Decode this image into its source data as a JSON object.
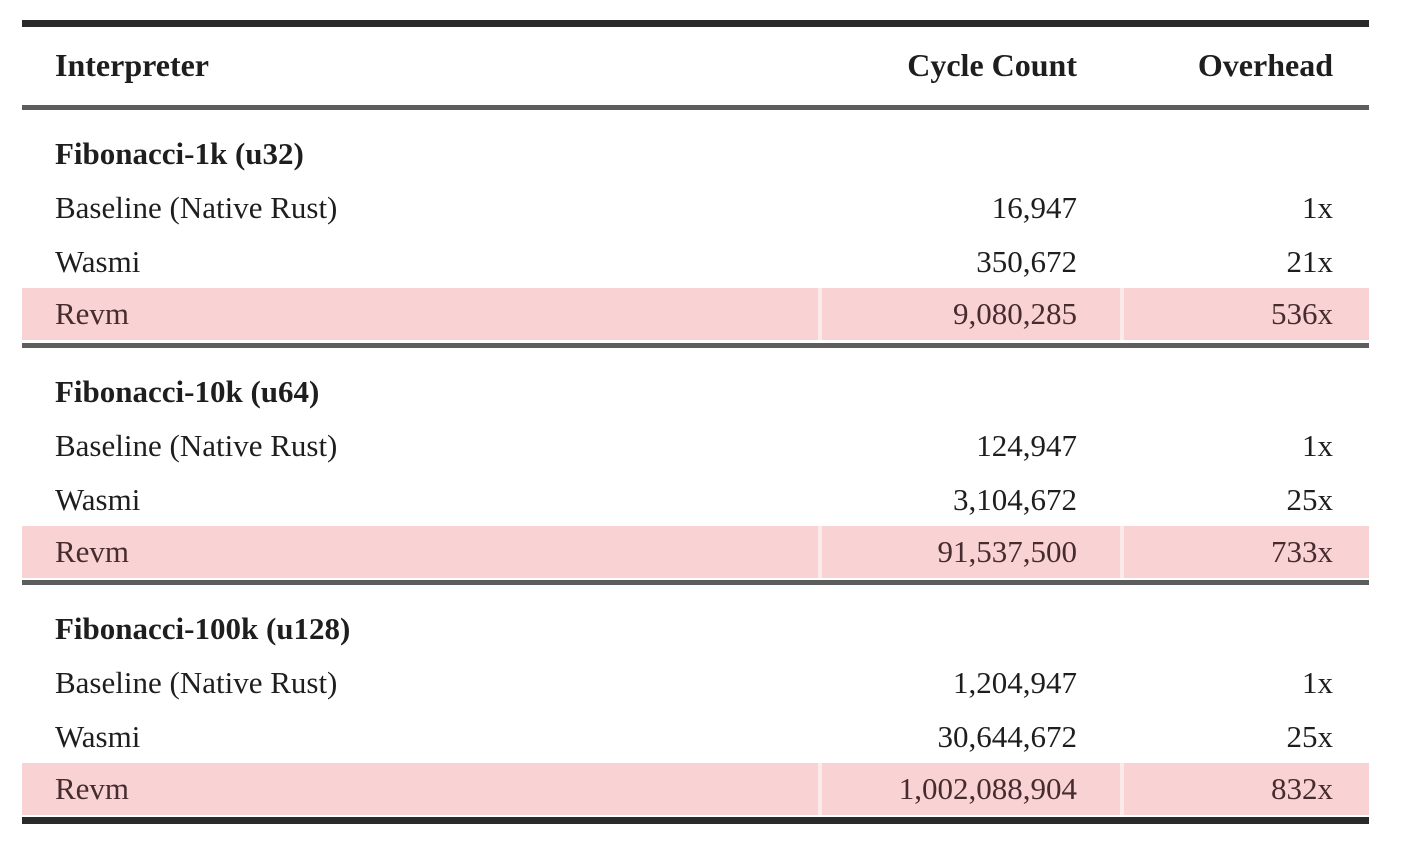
{
  "table": {
    "columns": [
      "Interpreter",
      "Cycle Count",
      "Overhead"
    ],
    "sections": [
      {
        "title": "Fibonacci-1k (u32)",
        "rows": [
          {
            "interpreter": "Baseline (Native Rust)",
            "cycle_count": "16,947",
            "overhead": "1x",
            "highlight": false
          },
          {
            "interpreter": "Wasmi",
            "cycle_count": "350,672",
            "overhead": "21x",
            "highlight": false
          },
          {
            "interpreter": "Revm",
            "cycle_count": "9,080,285",
            "overhead": "536x",
            "highlight": true
          }
        ]
      },
      {
        "title": "Fibonacci-10k (u64)",
        "rows": [
          {
            "interpreter": "Baseline (Native Rust)",
            "cycle_count": "124,947",
            "overhead": "1x",
            "highlight": false
          },
          {
            "interpreter": "Wasmi",
            "cycle_count": "3,104,672",
            "overhead": "25x",
            "highlight": false
          },
          {
            "interpreter": "Revm",
            "cycle_count": "91,537,500",
            "overhead": "733x",
            "highlight": true
          }
        ]
      },
      {
        "title": "Fibonacci-100k (u128)",
        "rows": [
          {
            "interpreter": "Baseline (Native Rust)",
            "cycle_count": "1,204,947",
            "overhead": "1x",
            "highlight": false
          },
          {
            "interpreter": "Wasmi",
            "cycle_count": "30,644,672",
            "overhead": "25x",
            "highlight": false
          },
          {
            "interpreter": "Revm",
            "cycle_count": "1,002,088,904",
            "overhead": "832x",
            "highlight": true
          }
        ]
      }
    ]
  },
  "colors": {
    "highlight_row": "#f9d2d4",
    "highlight_sep": "#fce9ea",
    "highlight_text": "#462c2f",
    "text": "#1e1e1e",
    "rule_heavy": "#2a2a2a",
    "rule_light": "#5d5d5d",
    "page_bg": "#ffffff"
  }
}
